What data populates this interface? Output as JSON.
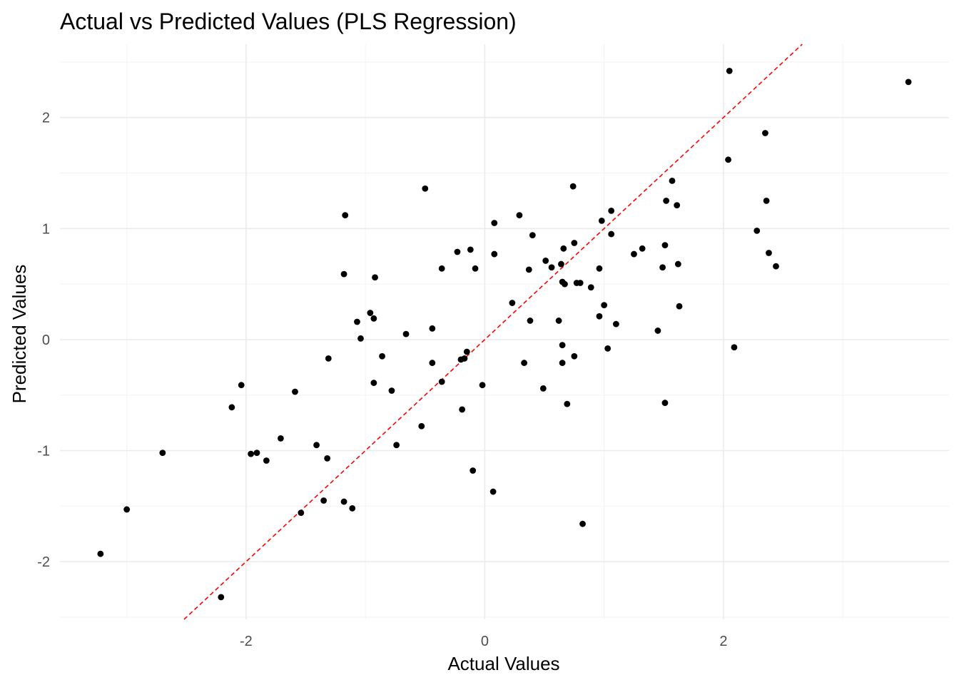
{
  "chart_data": {
    "type": "scatter",
    "title": "Actual vs Predicted Values (PLS Regression)",
    "xlabel": "Actual Values",
    "ylabel": "Predicted Values",
    "xlim": [
      -3.56,
      3.89
    ],
    "ylim": [
      -2.52,
      2.66
    ],
    "xticks": [
      -2,
      0,
      2
    ],
    "yticks": [
      -2,
      -1,
      0,
      1,
      2
    ],
    "grid": true,
    "point_color": "#000000",
    "reference_line": {
      "slope": 1,
      "intercept": 0,
      "style": "dashed",
      "color": "#ff0000"
    },
    "points": [
      [
        -3.22,
        -1.93
      ],
      [
        -3.0,
        -1.53
      ],
      [
        -2.7,
        -1.02
      ],
      [
        -2.21,
        -2.32
      ],
      [
        -2.12,
        -0.61
      ],
      [
        -2.04,
        -0.41
      ],
      [
        -1.96,
        -1.03
      ],
      [
        -1.91,
        -1.02
      ],
      [
        -1.83,
        -1.09
      ],
      [
        -1.71,
        -0.89
      ],
      [
        -1.59,
        -0.47
      ],
      [
        -1.54,
        -1.56
      ],
      [
        -1.41,
        -0.95
      ],
      [
        -1.35,
        -1.45
      ],
      [
        -1.32,
        -1.07
      ],
      [
        -1.31,
        -0.17
      ],
      [
        -1.18,
        -1.46
      ],
      [
        -1.18,
        0.59
      ],
      [
        -1.17,
        1.12
      ],
      [
        -1.11,
        -1.52
      ],
      [
        -1.07,
        0.16
      ],
      [
        -1.04,
        0.01
      ],
      [
        -0.96,
        0.24
      ],
      [
        -0.93,
        0.19
      ],
      [
        -0.93,
        -0.39
      ],
      [
        -0.92,
        0.56
      ],
      [
        -0.86,
        -0.15
      ],
      [
        -0.78,
        -0.46
      ],
      [
        -0.74,
        -0.95
      ],
      [
        -0.66,
        0.05
      ],
      [
        -0.53,
        -0.78
      ],
      [
        -0.5,
        1.36
      ],
      [
        -0.44,
        0.1
      ],
      [
        -0.44,
        -0.21
      ],
      [
        -0.36,
        -0.38
      ],
      [
        -0.36,
        0.64
      ],
      [
        -0.23,
        0.79
      ],
      [
        -0.2,
        -0.18
      ],
      [
        -0.19,
        -0.63
      ],
      [
        -0.17,
        -0.17
      ],
      [
        -0.15,
        -0.11
      ],
      [
        -0.12,
        0.81
      ],
      [
        -0.1,
        -1.18
      ],
      [
        -0.08,
        0.64
      ],
      [
        -0.02,
        -0.41
      ],
      [
        0.07,
        -1.37
      ],
      [
        0.08,
        1.05
      ],
      [
        0.08,
        0.77
      ],
      [
        0.23,
        0.33
      ],
      [
        0.29,
        1.12
      ],
      [
        0.33,
        -0.21
      ],
      [
        0.37,
        0.63
      ],
      [
        0.38,
        0.17
      ],
      [
        0.4,
        0.94
      ],
      [
        0.49,
        -0.44
      ],
      [
        0.51,
        0.71
      ],
      [
        0.56,
        0.65
      ],
      [
        0.62,
        0.17
      ],
      [
        0.64,
        0.68
      ],
      [
        0.65,
        0.52
      ],
      [
        0.65,
        -0.05
      ],
      [
        0.65,
        -0.21
      ],
      [
        0.66,
        0.82
      ],
      [
        0.67,
        0.5
      ],
      [
        0.69,
        -0.58
      ],
      [
        0.74,
        1.38
      ],
      [
        0.75,
        0.87
      ],
      [
        0.75,
        -0.15
      ],
      [
        0.77,
        0.51
      ],
      [
        0.8,
        0.51
      ],
      [
        0.82,
        -1.66
      ],
      [
        0.89,
        0.47
      ],
      [
        0.96,
        0.64
      ],
      [
        0.96,
        0.21
      ],
      [
        0.98,
        1.07
      ],
      [
        1.0,
        0.31
      ],
      [
        1.03,
        -0.08
      ],
      [
        1.06,
        1.16
      ],
      [
        1.06,
        0.95
      ],
      [
        1.1,
        0.14
      ],
      [
        1.25,
        0.77
      ],
      [
        1.32,
        0.82
      ],
      [
        1.45,
        0.08
      ],
      [
        1.49,
        0.65
      ],
      [
        1.51,
        0.85
      ],
      [
        1.51,
        -0.57
      ],
      [
        1.52,
        1.25
      ],
      [
        1.57,
        1.43
      ],
      [
        1.61,
        1.21
      ],
      [
        1.62,
        0.68
      ],
      [
        1.63,
        0.3
      ],
      [
        2.04,
        1.62
      ],
      [
        2.05,
        2.42
      ],
      [
        2.09,
        -0.07
      ],
      [
        2.28,
        0.98
      ],
      [
        2.35,
        1.86
      ],
      [
        2.36,
        1.25
      ],
      [
        2.38,
        0.78
      ],
      [
        2.44,
        0.66
      ],
      [
        3.55,
        2.32
      ]
    ]
  }
}
